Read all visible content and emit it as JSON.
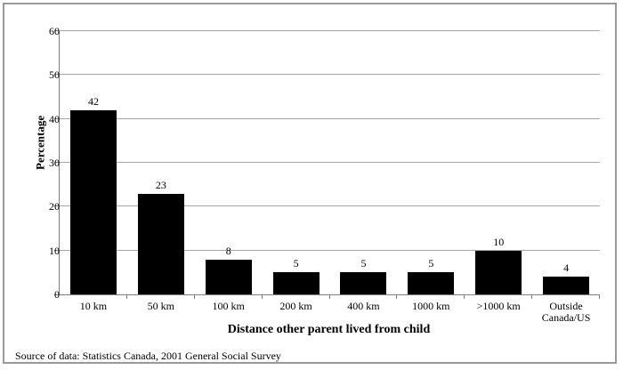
{
  "figure": {
    "y_axis_label": "Percentage",
    "x_axis_title": "Distance other parent lived from child",
    "source_note": "Source of data:  Statistics Canada, 2001 General Social Survey"
  },
  "chart_data": {
    "type": "bar",
    "categories": [
      "10 km",
      "50 km",
      "100 km",
      "200 km",
      "400 km",
      "1000 km",
      ">1000 km",
      "Outside Canada/US"
    ],
    "values": [
      42,
      23,
      8,
      5,
      5,
      5,
      10,
      4
    ],
    "data_labels": [
      "42",
      "23",
      "8",
      "5",
      "5",
      "5",
      "10",
      "4"
    ],
    "title": "",
    "xlabel": "Distance other parent lived from child",
    "ylabel": "Percentage",
    "ylim": [
      0,
      60
    ],
    "ytick_step": 10,
    "ytick_labels": [
      "0",
      "10",
      "20",
      "30",
      "40",
      "50",
      "60"
    ],
    "grid": true,
    "legend": "none",
    "bar_color": "#000000",
    "gridline_color": "#a6a6a6",
    "axis_color": "#808080",
    "source": "Source of data:  Statistics Canada, 2001 General Social Survey"
  }
}
